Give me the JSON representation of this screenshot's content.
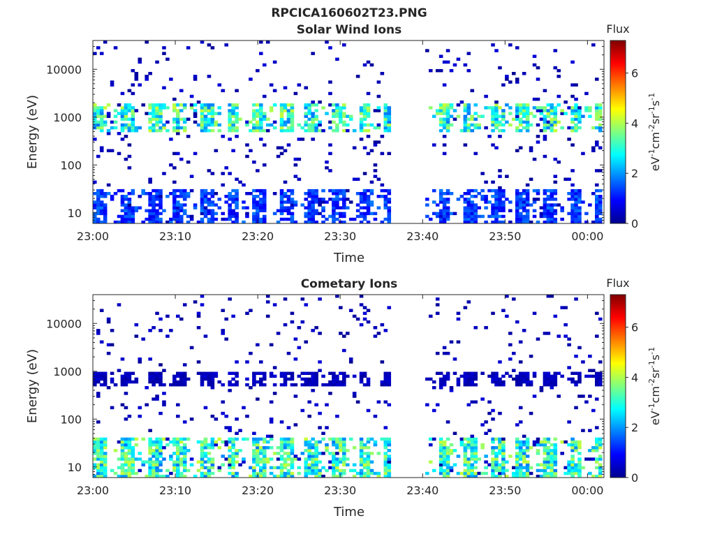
{
  "figure_title": "RPCICA160602T23.PNG",
  "chart_data": [
    {
      "type": "heatmap",
      "title": "Solar Wind Ions",
      "xlabel": "Time",
      "ylabel": "Energy (eV)",
      "x_range": [
        "23:00",
        "00:02"
      ],
      "x_ticks": [
        "23:00",
        "23:10",
        "23:20",
        "23:30",
        "23:40",
        "23:50",
        "00:00"
      ],
      "y_scale": "log",
      "y_range": [
        6,
        40000
      ],
      "y_ticks": [
        "10",
        "100",
        "1000",
        "10000"
      ],
      "colorbar": {
        "label": "Flux",
        "units": {
          "base": "eV",
          "e1": "-1",
          "b2": "cm",
          "e2": "-2",
          "b3": "sr",
          "e3": "-1",
          "b4": "s",
          "e4": "-1"
        },
        "range": [
          0,
          7.3
        ],
        "ticks": [
          "0",
          "2",
          "4",
          "6"
        ],
        "colormap": "jet"
      },
      "data_gap": [
        "23:36",
        "23:40"
      ],
      "dominant_features": [
        {
          "energy_range_eV": [
            500,
            2000
          ],
          "flux_level": 3.5,
          "description": "solar wind proton band"
        },
        {
          "energy_range_eV": [
            6,
            30
          ],
          "flux_level": 1.5,
          "description": "low energy ions"
        }
      ],
      "grid": false
    },
    {
      "type": "heatmap",
      "title": "Cometary Ions",
      "xlabel": "Time",
      "ylabel": "Energy (eV)",
      "x_range": [
        "23:00",
        "00:02"
      ],
      "x_ticks": [
        "23:00",
        "23:10",
        "23:20",
        "23:30",
        "23:40",
        "23:50",
        "00:00"
      ],
      "y_scale": "log",
      "y_range": [
        6,
        40000
      ],
      "y_ticks": [
        "10",
        "100",
        "1000",
        "10000"
      ],
      "colorbar": {
        "label": "Flux",
        "units": {
          "base": "eV",
          "e1": "-1",
          "b2": "cm",
          "e2": "-2",
          "b3": "sr",
          "e3": "-1",
          "b4": "s",
          "e4": "-1"
        },
        "range": [
          0,
          7.3
        ],
        "ticks": [
          "0",
          "2",
          "4",
          "6"
        ],
        "colormap": "jet"
      },
      "data_gap": [
        "23:36",
        "23:40"
      ],
      "dominant_features": [
        {
          "energy_range_eV": [
            6,
            40
          ],
          "flux_level": 3.5,
          "description": "cometary ion band"
        },
        {
          "energy_range_eV": [
            500,
            1000
          ],
          "flux_level": 0.5,
          "description": "weak high energy ions"
        }
      ],
      "grid": false
    }
  ]
}
